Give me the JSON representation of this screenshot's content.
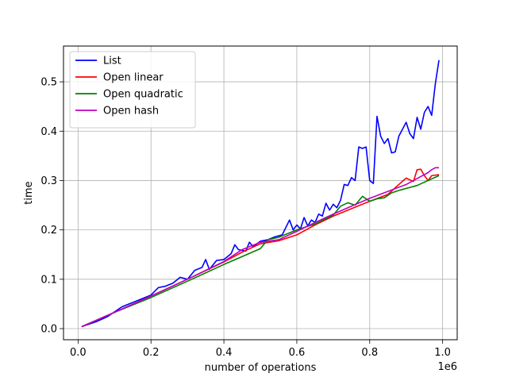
{
  "chart_data": {
    "type": "line",
    "xlabel": "number of operations",
    "ylabel": "time",
    "x_offset_label": "1e6",
    "xlim": [
      -0.04,
      1.04
    ],
    "ylim": [
      -0.0225,
      0.5725
    ],
    "x_ticks": [
      0.0,
      0.2,
      0.4,
      0.6,
      0.8,
      1.0
    ],
    "x_tick_labels": [
      "0.0",
      "0.2",
      "0.4",
      "0.6",
      "0.8",
      "1.0"
    ],
    "y_ticks": [
      0.0,
      0.1,
      0.2,
      0.3,
      0.4,
      0.5
    ],
    "y_tick_labels": [
      "0.0",
      "0.1",
      "0.2",
      "0.3",
      "0.4",
      "0.5"
    ],
    "grid": true,
    "legend_position": "top-left",
    "series": [
      {
        "name": "List",
        "color": "#0000ff",
        "points": [
          [
            0.01,
            0.004
          ],
          [
            0.05,
            0.014
          ],
          [
            0.08,
            0.024
          ],
          [
            0.1,
            0.034
          ],
          [
            0.12,
            0.044
          ],
          [
            0.14,
            0.05
          ],
          [
            0.16,
            0.056
          ],
          [
            0.18,
            0.062
          ],
          [
            0.2,
            0.068
          ],
          [
            0.22,
            0.083
          ],
          [
            0.24,
            0.086
          ],
          [
            0.26,
            0.092
          ],
          [
            0.28,
            0.104
          ],
          [
            0.3,
            0.1
          ],
          [
            0.32,
            0.118
          ],
          [
            0.34,
            0.124
          ],
          [
            0.35,
            0.14
          ],
          [
            0.36,
            0.12
          ],
          [
            0.38,
            0.138
          ],
          [
            0.4,
            0.14
          ],
          [
            0.42,
            0.152
          ],
          [
            0.43,
            0.17
          ],
          [
            0.44,
            0.16
          ],
          [
            0.46,
            0.157
          ],
          [
            0.47,
            0.175
          ],
          [
            0.48,
            0.166
          ],
          [
            0.5,
            0.177
          ],
          [
            0.52,
            0.18
          ],
          [
            0.54,
            0.186
          ],
          [
            0.56,
            0.19
          ],
          [
            0.58,
            0.22
          ],
          [
            0.59,
            0.2
          ],
          [
            0.6,
            0.21
          ],
          [
            0.61,
            0.202
          ],
          [
            0.62,
            0.225
          ],
          [
            0.63,
            0.208
          ],
          [
            0.64,
            0.22
          ],
          [
            0.65,
            0.215
          ],
          [
            0.66,
            0.232
          ],
          [
            0.67,
            0.228
          ],
          [
            0.68,
            0.254
          ],
          [
            0.69,
            0.24
          ],
          [
            0.7,
            0.252
          ],
          [
            0.71,
            0.245
          ],
          [
            0.72,
            0.26
          ],
          [
            0.73,
            0.292
          ],
          [
            0.74,
            0.29
          ],
          [
            0.75,
            0.306
          ],
          [
            0.76,
            0.3
          ],
          [
            0.77,
            0.368
          ],
          [
            0.78,
            0.365
          ],
          [
            0.79,
            0.368
          ],
          [
            0.8,
            0.3
          ],
          [
            0.81,
            0.294
          ],
          [
            0.82,
            0.43
          ],
          [
            0.83,
            0.39
          ],
          [
            0.84,
            0.375
          ],
          [
            0.85,
            0.385
          ],
          [
            0.86,
            0.356
          ],
          [
            0.87,
            0.358
          ],
          [
            0.88,
            0.39
          ],
          [
            0.9,
            0.418
          ],
          [
            0.91,
            0.395
          ],
          [
            0.92,
            0.385
          ],
          [
            0.93,
            0.428
          ],
          [
            0.94,
            0.404
          ],
          [
            0.95,
            0.438
          ],
          [
            0.96,
            0.45
          ],
          [
            0.97,
            0.432
          ],
          [
            0.98,
            0.496
          ],
          [
            0.99,
            0.544
          ]
        ]
      },
      {
        "name": "Open linear",
        "color": "#ff0000",
        "points": [
          [
            0.01,
            0.004
          ],
          [
            0.1,
            0.033
          ],
          [
            0.2,
            0.066
          ],
          [
            0.3,
            0.1
          ],
          [
            0.4,
            0.135
          ],
          [
            0.45,
            0.155
          ],
          [
            0.5,
            0.172
          ],
          [
            0.55,
            0.178
          ],
          [
            0.6,
            0.19
          ],
          [
            0.65,
            0.21
          ],
          [
            0.7,
            0.228
          ],
          [
            0.75,
            0.243
          ],
          [
            0.8,
            0.258
          ],
          [
            0.85,
            0.272
          ],
          [
            0.88,
            0.292
          ],
          [
            0.9,
            0.305
          ],
          [
            0.92,
            0.298
          ],
          [
            0.93,
            0.322
          ],
          [
            0.94,
            0.323
          ],
          [
            0.95,
            0.31
          ],
          [
            0.96,
            0.3
          ],
          [
            0.97,
            0.31
          ],
          [
            0.99,
            0.312
          ]
        ]
      },
      {
        "name": "Open quadratic",
        "color": "#008000",
        "points": [
          [
            0.01,
            0.004
          ],
          [
            0.1,
            0.033
          ],
          [
            0.2,
            0.063
          ],
          [
            0.3,
            0.096
          ],
          [
            0.4,
            0.13
          ],
          [
            0.45,
            0.146
          ],
          [
            0.5,
            0.162
          ],
          [
            0.52,
            0.18
          ],
          [
            0.55,
            0.185
          ],
          [
            0.6,
            0.2
          ],
          [
            0.65,
            0.212
          ],
          [
            0.7,
            0.23
          ],
          [
            0.72,
            0.248
          ],
          [
            0.74,
            0.255
          ],
          [
            0.76,
            0.25
          ],
          [
            0.78,
            0.268
          ],
          [
            0.8,
            0.258
          ],
          [
            0.82,
            0.263
          ],
          [
            0.84,
            0.265
          ],
          [
            0.86,
            0.275
          ],
          [
            0.88,
            0.28
          ],
          [
            0.9,
            0.284
          ],
          [
            0.93,
            0.29
          ],
          [
            0.96,
            0.3
          ],
          [
            0.99,
            0.31
          ]
        ]
      },
      {
        "name": "Open hash",
        "color": "#bf00bf",
        "points": [
          [
            0.01,
            0.004
          ],
          [
            0.1,
            0.033
          ],
          [
            0.2,
            0.066
          ],
          [
            0.3,
            0.1
          ],
          [
            0.4,
            0.136
          ],
          [
            0.45,
            0.16
          ],
          [
            0.5,
            0.175
          ],
          [
            0.55,
            0.18
          ],
          [
            0.6,
            0.197
          ],
          [
            0.65,
            0.215
          ],
          [
            0.7,
            0.232
          ],
          [
            0.75,
            0.248
          ],
          [
            0.8,
            0.264
          ],
          [
            0.85,
            0.278
          ],
          [
            0.9,
            0.292
          ],
          [
            0.92,
            0.3
          ],
          [
            0.94,
            0.308
          ],
          [
            0.96,
            0.316
          ],
          [
            0.97,
            0.322
          ],
          [
            0.98,
            0.326
          ],
          [
            0.99,
            0.326
          ]
        ]
      }
    ]
  }
}
